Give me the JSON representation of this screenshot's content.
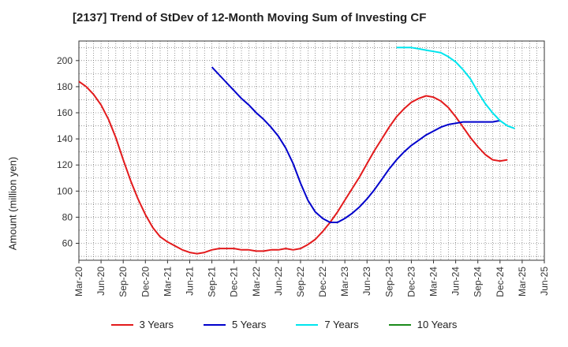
{
  "chart_data": {
    "type": "line",
    "title": "[2137]  Trend of StDev of 12-Month Moving Sum of Investing CF",
    "xlabel": "",
    "ylabel": "Amount (million yen)",
    "ylim": [
      47,
      215
    ],
    "yticks": [
      60,
      80,
      100,
      120,
      140,
      160,
      180,
      200
    ],
    "x_ticks": [
      "Mar-20",
      "Jun-20",
      "Sep-20",
      "Dec-20",
      "Mar-21",
      "Jun-21",
      "Sep-21",
      "Dec-21",
      "Mar-22",
      "Jun-22",
      "Sep-22",
      "Dec-22",
      "Mar-23",
      "Jun-23",
      "Sep-23",
      "Dec-23",
      "Mar-24",
      "Jun-24",
      "Sep-24",
      "Dec-24",
      "Mar-25",
      "Jun-25"
    ],
    "grid": true,
    "legend_position": "bottom",
    "series": [
      {
        "name": "3 Years",
        "color": "#e31a1c",
        "start_index": 0,
        "values": [
          184,
          180,
          174,
          166,
          155,
          141,
          124,
          108,
          94,
          82,
          72,
          65,
          61,
          58,
          55,
          53,
          52,
          53,
          55,
          56,
          56,
          56,
          55,
          55,
          54,
          54,
          55,
          55,
          56,
          55,
          56,
          59,
          63,
          69,
          76,
          84,
          93,
          102,
          111,
          121,
          131,
          140,
          149,
          157,
          163,
          168,
          171,
          173,
          172,
          169,
          164,
          157,
          149,
          141,
          134,
          128,
          124,
          123,
          124
        ]
      },
      {
        "name": "5 Years",
        "color": "#0000cc",
        "start_index": 18,
        "values": [
          195,
          189,
          183,
          177,
          171,
          166,
          160,
          155,
          149,
          142,
          133,
          121,
          106,
          93,
          84,
          79,
          76,
          76,
          79,
          83,
          88,
          94,
          101,
          109,
          117,
          124,
          130,
          135,
          139,
          143,
          146,
          149,
          151,
          152,
          153,
          153,
          153,
          153,
          153,
          154
        ]
      },
      {
        "name": "7 Years",
        "color": "#00e5ee",
        "start_index": 43,
        "values": [
          210,
          210,
          210,
          209,
          208,
          207,
          206,
          203,
          199,
          193,
          186,
          176,
          167,
          160,
          154,
          150,
          148
        ]
      },
      {
        "name": "10 Years",
        "color": "#1a8a1a",
        "start_index": 0,
        "values": []
      }
    ]
  }
}
